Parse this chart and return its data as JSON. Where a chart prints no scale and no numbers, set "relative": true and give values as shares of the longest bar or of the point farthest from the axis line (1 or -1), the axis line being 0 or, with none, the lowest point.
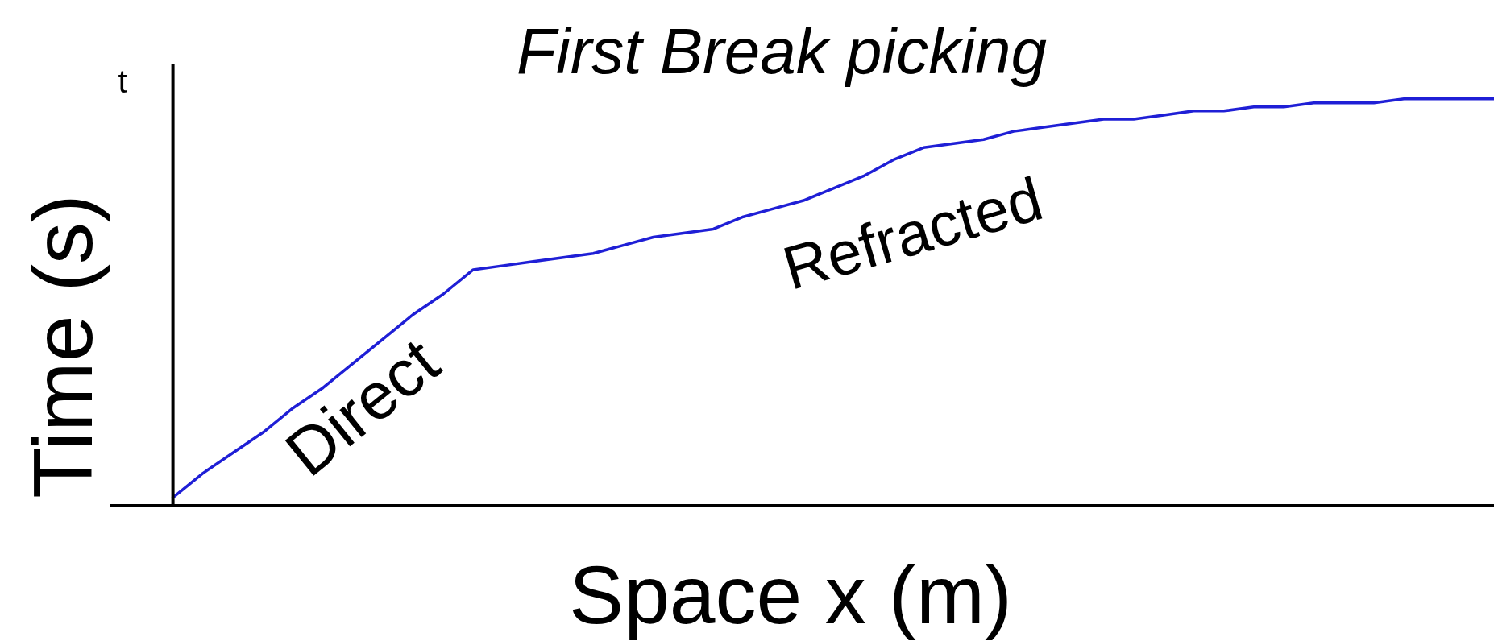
{
  "chart_data": {
    "type": "line",
    "title": "First Break picking",
    "xlabel": "Space x (m)",
    "ylabel": "Time (s)",
    "annotations": [
      "t",
      "Direct",
      "Refracted"
    ],
    "relative": true,
    "marker": "none",
    "color": "#1f1fd6",
    "categories": [
      null,
      null,
      null,
      null,
      null,
      null,
      null,
      null,
      null,
      null,
      null,
      null,
      null,
      null,
      null,
      null,
      null,
      null,
      null,
      null,
      null,
      null,
      null,
      null,
      null,
      null,
      null,
      null,
      null,
      null,
      null,
      null,
      null,
      null,
      null,
      null,
      null,
      null,
      null,
      null,
      null,
      null,
      null,
      null,
      null
    ],
    "values": [
      0.02,
      0.08,
      0.13,
      0.18,
      0.24,
      0.29,
      0.35,
      0.41,
      0.47,
      0.52,
      0.58,
      0.59,
      0.6,
      0.61,
      0.62,
      0.64,
      0.66,
      0.67,
      0.68,
      0.71,
      0.73,
      0.75,
      0.78,
      0.81,
      0.85,
      0.88,
      0.89,
      0.9,
      0.92,
      0.93,
      0.94,
      0.95,
      0.95,
      0.96,
      0.97,
      0.97,
      0.98,
      0.98,
      0.99,
      0.99,
      0.99,
      1,
      1,
      1,
      1
    ]
  }
}
